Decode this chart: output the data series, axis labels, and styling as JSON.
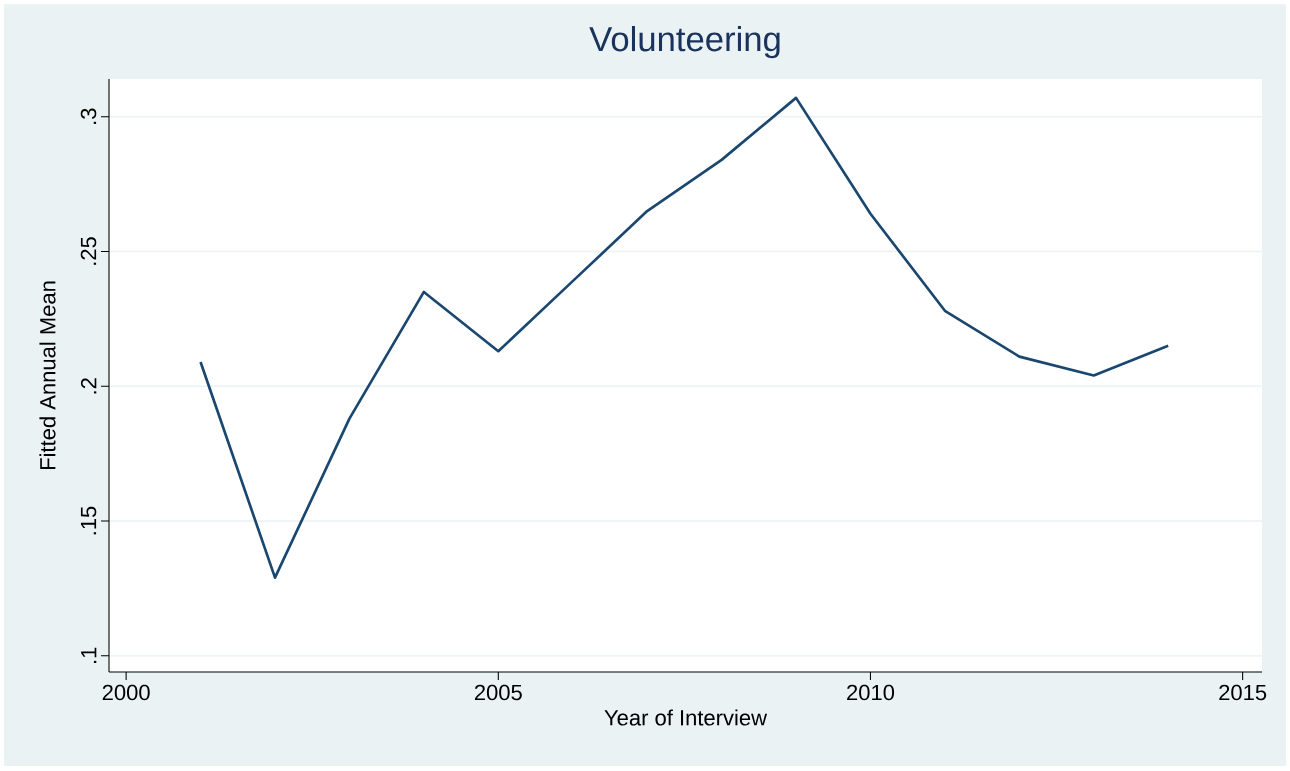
{
  "chart_data": {
    "type": "line",
    "title": "Volunteering",
    "xlabel": "Year of Interview",
    "ylabel": "Fitted Annual Mean",
    "x": [
      2001,
      2002,
      2003,
      2004,
      2005,
      2006,
      2007,
      2008,
      2009,
      2010,
      2011,
      2012,
      2013,
      2014
    ],
    "series": [
      {
        "color": "#1a476f",
        "values": [
          0.209,
          0.129,
          0.188,
          0.235,
          0.213,
          0.239,
          0.265,
          0.284,
          0.307,
          0.264,
          0.228,
          0.211,
          0.204,
          0.215
        ]
      }
    ],
    "xlim": [
      1999.77,
      2015.26
    ],
    "ylim": [
      0.094,
      0.314
    ],
    "xticks": [
      2000,
      2005,
      2010,
      2015
    ],
    "yticks": [
      {
        "value": 0.1,
        "label": ".1"
      },
      {
        "value": 0.15,
        "label": ".15"
      },
      {
        "value": 0.2,
        "label": ".2"
      },
      {
        "value": 0.25,
        "label": ".25"
      },
      {
        "value": 0.3,
        "label": ".3"
      }
    ],
    "grid": "y",
    "marker": "none",
    "line_style": "solid"
  }
}
